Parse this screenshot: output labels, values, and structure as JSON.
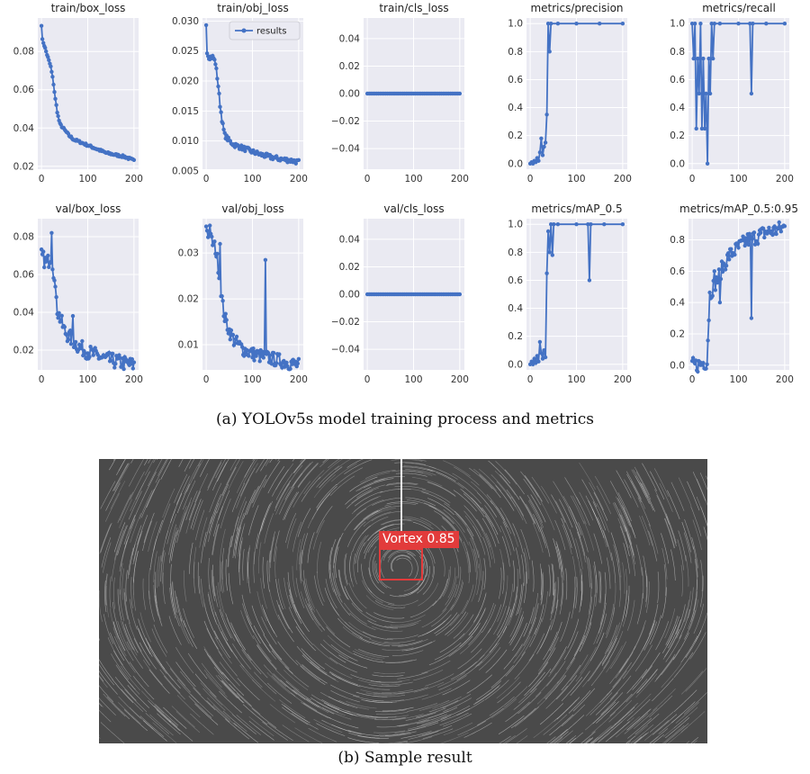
{
  "chart_data": [
    {
      "title": "train/box_loss",
      "type": "line",
      "xlim": [
        -8,
        210
      ],
      "ylim": [
        0.0185,
        0.0975
      ],
      "xticks": [
        0,
        100,
        200
      ],
      "xtick_labels": [
        "0",
        "100",
        "200"
      ],
      "yticks": [
        0.02,
        0.04,
        0.06,
        0.08
      ],
      "ytick_labels": [
        "0.02",
        "0.04",
        "0.06",
        "0.08"
      ],
      "shape": [
        [
          0,
          0.094
        ],
        [
          2,
          0.086
        ],
        [
          5,
          0.084
        ],
        [
          10,
          0.08
        ],
        [
          15,
          0.076
        ],
        [
          20,
          0.072
        ],
        [
          25,
          0.065
        ],
        [
          30,
          0.055
        ],
        [
          35,
          0.047
        ],
        [
          40,
          0.042
        ],
        [
          50,
          0.039
        ],
        [
          60,
          0.036
        ],
        [
          70,
          0.034
        ],
        [
          80,
          0.033
        ],
        [
          90,
          0.032
        ],
        [
          100,
          0.031
        ],
        [
          120,
          0.029
        ],
        [
          140,
          0.027
        ],
        [
          160,
          0.026
        ],
        [
          180,
          0.025
        ],
        [
          200,
          0.023
        ]
      ],
      "noise": 0.0006
    },
    {
      "title": "train/obj_loss",
      "type": "line",
      "xlim": [
        -8,
        210
      ],
      "ylim": [
        0.0053,
        0.0305
      ],
      "xticks": [
        0,
        100,
        200
      ],
      "xtick_labels": [
        "0",
        "100",
        "200"
      ],
      "yticks": [
        0.005,
        0.01,
        0.015,
        0.02,
        0.025,
        0.03
      ],
      "ytick_labels": [
        "0.005",
        "0.010",
        "0.015",
        "0.020",
        "0.025",
        "0.030"
      ],
      "shape": [
        [
          0,
          0.0295
        ],
        [
          2,
          0.025
        ],
        [
          5,
          0.024
        ],
        [
          10,
          0.024
        ],
        [
          15,
          0.024
        ],
        [
          20,
          0.023
        ],
        [
          25,
          0.02
        ],
        [
          30,
          0.016
        ],
        [
          35,
          0.013
        ],
        [
          40,
          0.011
        ],
        [
          50,
          0.01
        ],
        [
          60,
          0.0094
        ],
        [
          80,
          0.0088
        ],
        [
          100,
          0.0082
        ],
        [
          120,
          0.0077
        ],
        [
          140,
          0.0073
        ],
        [
          160,
          0.007
        ],
        [
          180,
          0.0068
        ],
        [
          200,
          0.0065
        ]
      ],
      "noise": 0.0004,
      "legend": "results"
    },
    {
      "title": "train/cls_loss",
      "type": "line",
      "xlim": [
        -8,
        210
      ],
      "ylim": [
        -0.055,
        0.055
      ],
      "xticks": [
        0,
        100,
        200
      ],
      "xtick_labels": [
        "0",
        "100",
        "200"
      ],
      "yticks": [
        -0.04,
        -0.02,
        0,
        0.02,
        0.04
      ],
      "ytick_labels": [
        "−0.04",
        "−0.02",
        "0.00",
        "0.02",
        "0.04"
      ],
      "shape": [
        [
          0,
          0
        ],
        [
          200,
          0
        ]
      ],
      "noise": 0,
      "flat": true
    },
    {
      "title": "metrics/precision",
      "type": "line",
      "xlim": [
        -8,
        210
      ],
      "ylim": [
        -0.04,
        1.04
      ],
      "xticks": [
        0,
        100,
        200
      ],
      "xtick_labels": [
        "0",
        "100",
        "200"
      ],
      "yticks": [
        0,
        0.2,
        0.4,
        0.6,
        0.8,
        1.0
      ],
      "ytick_labels": [
        "0.0",
        "0.2",
        "0.4",
        "0.6",
        "0.8",
        "1.0"
      ],
      "points": [
        [
          0,
          0.0
        ],
        [
          3,
          0.01
        ],
        [
          6,
          0.0
        ],
        [
          9,
          0.02
        ],
        [
          12,
          0.01
        ],
        [
          15,
          0.04
        ],
        [
          18,
          0.02
        ],
        [
          21,
          0.08
        ],
        [
          24,
          0.18
        ],
        [
          27,
          0.06
        ],
        [
          30,
          0.12
        ],
        [
          33,
          0.15
        ],
        [
          36,
          0.35
        ],
        [
          39,
          1.0
        ],
        [
          42,
          0.8
        ],
        [
          45,
          1.0
        ],
        [
          60,
          1.0
        ],
        [
          100,
          1.0
        ],
        [
          150,
          1.0
        ],
        [
          200,
          1.0
        ]
      ]
    },
    {
      "title": "metrics/recall",
      "type": "line",
      "xlim": [
        -8,
        210
      ],
      "ylim": [
        -0.04,
        1.04
      ],
      "xticks": [
        0,
        100,
        200
      ],
      "xtick_labels": [
        "0",
        "100",
        "200"
      ],
      "yticks": [
        0,
        0.2,
        0.4,
        0.6,
        0.8,
        1.0
      ],
      "ytick_labels": [
        "0.0",
        "0.2",
        "0.4",
        "0.6",
        "0.8",
        "1.0"
      ],
      "points": [
        [
          0,
          1.0
        ],
        [
          3,
          0.75
        ],
        [
          6,
          1.0
        ],
        [
          9,
          0.25
        ],
        [
          12,
          0.75
        ],
        [
          15,
          0.5
        ],
        [
          18,
          1.0
        ],
        [
          21,
          0.25
        ],
        [
          24,
          0.75
        ],
        [
          27,
          0.25
        ],
        [
          30,
          0.5
        ],
        [
          33,
          0.0
        ],
        [
          36,
          0.75
        ],
        [
          39,
          0.5
        ],
        [
          42,
          1.0
        ],
        [
          45,
          0.75
        ],
        [
          48,
          1.0
        ],
        [
          60,
          1.0
        ],
        [
          100,
          1.0
        ],
        [
          125,
          1.0
        ],
        [
          128,
          0.5
        ],
        [
          131,
          1.0
        ],
        [
          160,
          1.0
        ],
        [
          200,
          1.0
        ]
      ]
    },
    {
      "title": "val/box_loss",
      "type": "line",
      "xlim": [
        -8,
        210
      ],
      "ylim": [
        0.0095,
        0.0895
      ],
      "xticks": [
        0,
        100,
        200
      ],
      "xtick_labels": [
        "0",
        "100",
        "200"
      ],
      "yticks": [
        0.02,
        0.04,
        0.06,
        0.08
      ],
      "ytick_labels": [
        "0.02",
        "0.04",
        "0.06",
        "0.08"
      ],
      "shape": [
        [
          0,
          0.07
        ],
        [
          5,
          0.068
        ],
        [
          10,
          0.066
        ],
        [
          15,
          0.067
        ],
        [
          20,
          0.07
        ],
        [
          25,
          0.065
        ],
        [
          30,
          0.05
        ],
        [
          35,
          0.04
        ],
        [
          40,
          0.037
        ],
        [
          50,
          0.03
        ],
        [
          60,
          0.027
        ],
        [
          80,
          0.022
        ],
        [
          100,
          0.019
        ],
        [
          120,
          0.017
        ],
        [
          140,
          0.015
        ],
        [
          160,
          0.014
        ],
        [
          180,
          0.013
        ],
        [
          200,
          0.012
        ]
      ],
      "noise": 0.004,
      "spikes": [
        [
          5,
          0.087
        ],
        [
          22,
          0.082
        ],
        [
          32,
          0.048
        ],
        [
          45,
          0.045
        ],
        [
          68,
          0.038
        ],
        [
          125,
          0.047
        ]
      ]
    },
    {
      "title": "val/obj_loss",
      "type": "line",
      "xlim": [
        -8,
        210
      ],
      "ylim": [
        0.0045,
        0.0375
      ],
      "xticks": [
        0,
        100,
        200
      ],
      "xtick_labels": [
        "0",
        "100",
        "200"
      ],
      "yticks": [
        0.01,
        0.02,
        0.03
      ],
      "ytick_labels": [
        "0.01",
        "0.02",
        "0.03"
      ],
      "shape": [
        [
          0,
          0.036
        ],
        [
          5,
          0.034
        ],
        [
          10,
          0.033
        ],
        [
          20,
          0.031
        ],
        [
          25,
          0.028
        ],
        [
          30,
          0.024
        ],
        [
          35,
          0.019
        ],
        [
          40,
          0.016
        ],
        [
          50,
          0.013
        ],
        [
          60,
          0.011
        ],
        [
          80,
          0.009
        ],
        [
          100,
          0.008
        ],
        [
          120,
          0.0075
        ],
        [
          140,
          0.007
        ],
        [
          160,
          0.0065
        ],
        [
          180,
          0.006
        ],
        [
          200,
          0.0055
        ]
      ],
      "noise": 0.0015,
      "spikes": [
        [
          8,
          0.036
        ],
        [
          30,
          0.032
        ],
        [
          128,
          0.0285
        ]
      ]
    },
    {
      "title": "val/cls_loss",
      "type": "line",
      "xlim": [
        -8,
        210
      ],
      "ylim": [
        -0.055,
        0.055
      ],
      "xticks": [
        0,
        100,
        200
      ],
      "xtick_labels": [
        "0",
        "100",
        "200"
      ],
      "yticks": [
        -0.04,
        -0.02,
        0,
        0.02,
        0.04
      ],
      "ytick_labels": [
        "−0.04",
        "−0.02",
        "0.00",
        "0.02",
        "0.04"
      ],
      "shape": [
        [
          0,
          0
        ],
        [
          200,
          0
        ]
      ],
      "noise": 0,
      "flat": true
    },
    {
      "title": "metrics/mAP_0.5",
      "type": "line",
      "xlim": [
        -8,
        210
      ],
      "ylim": [
        -0.04,
        1.04
      ],
      "xticks": [
        0,
        100,
        200
      ],
      "xtick_labels": [
        "0",
        "100",
        "200"
      ],
      "yticks": [
        0,
        0.2,
        0.4,
        0.6,
        0.8,
        1.0
      ],
      "ytick_labels": [
        "0.0",
        "0.2",
        "0.4",
        "0.6",
        "0.8",
        "1.0"
      ],
      "points": [
        [
          0,
          0.0
        ],
        [
          3,
          0.02
        ],
        [
          6,
          0.0
        ],
        [
          9,
          0.04
        ],
        [
          12,
          0.01
        ],
        [
          15,
          0.06
        ],
        [
          18,
          0.02
        ],
        [
          21,
          0.16
        ],
        [
          24,
          0.08
        ],
        [
          27,
          0.04
        ],
        [
          30,
          0.1
        ],
        [
          33,
          0.05
        ],
        [
          36,
          0.65
        ],
        [
          39,
          0.95
        ],
        [
          42,
          0.8
        ],
        [
          45,
          1.0
        ],
        [
          48,
          0.78
        ],
        [
          51,
          1.0
        ],
        [
          60,
          1.0
        ],
        [
          100,
          1.0
        ],
        [
          125,
          1.0
        ],
        [
          128,
          0.6
        ],
        [
          131,
          1.0
        ],
        [
          160,
          1.0
        ],
        [
          200,
          1.0
        ]
      ]
    },
    {
      "title": "metrics/mAP_0.5:0.95",
      "type": "line",
      "xlim": [
        -8,
        210
      ],
      "ylim": [
        -0.03,
        0.935
      ],
      "xticks": [
        0,
        100,
        200
      ],
      "xtick_labels": [
        "0",
        "100",
        "200"
      ],
      "yticks": [
        0,
        0.2,
        0.4,
        0.6,
        0.8
      ],
      "ytick_labels": [
        "0.0",
        "0.2",
        "0.4",
        "0.6",
        "0.8"
      ],
      "shape": [
        [
          0,
          0.0
        ],
        [
          10,
          0.0
        ],
        [
          20,
          0.01
        ],
        [
          28,
          0.02
        ],
        [
          32,
          0.02
        ],
        [
          35,
          0.25
        ],
        [
          38,
          0.45
        ],
        [
          45,
          0.5
        ],
        [
          55,
          0.55
        ],
        [
          65,
          0.62
        ],
        [
          80,
          0.7
        ],
        [
          100,
          0.75
        ],
        [
          120,
          0.8
        ],
        [
          140,
          0.82
        ],
        [
          160,
          0.85
        ],
        [
          180,
          0.86
        ],
        [
          200,
          0.88
        ]
      ],
      "noise": 0.05,
      "spikes": [
        [
          128,
          0.3
        ],
        [
          48,
          0.6
        ],
        [
          60,
          0.4
        ]
      ]
    }
  ],
  "captions": {
    "a": "(a) YOLOv5s model training process and metrics",
    "b": "(b) Sample result"
  },
  "detection": {
    "label": "Vortex  0.85",
    "color": "#e23b3b"
  },
  "colors": {
    "series": "#4472c4",
    "panel_bg": "#eaeaf2",
    "grid": "#ffffff"
  }
}
